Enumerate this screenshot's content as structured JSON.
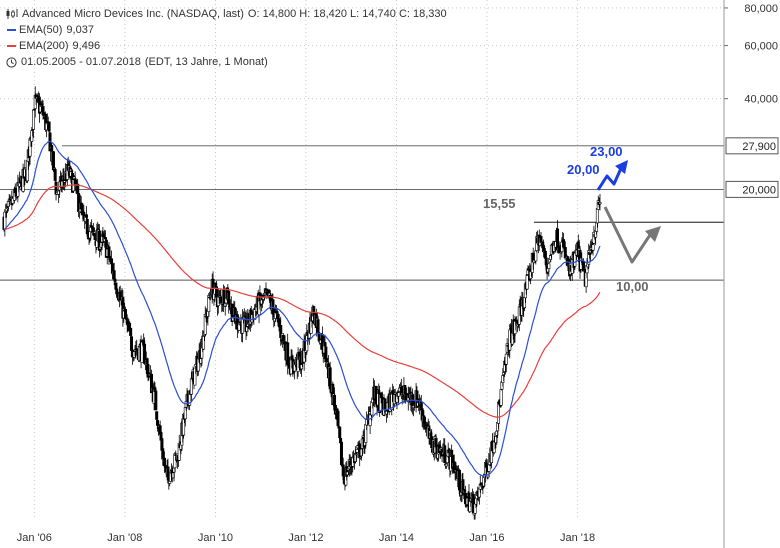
{
  "header": {
    "title": "Advanced Micro Devices Inc. (NASDAQ, last)",
    "ohlc": "O: 14,800  H: 18,420  L: 14,740  C: 18,330",
    "ema50_label": "EMA(50)",
    "ema50_value": "9,037",
    "ema200_label": "EMA(200)",
    "ema200_value": "9,496",
    "range_label": "01.05.2005 - 01.07.2018",
    "range_detail": "(EDT, 13 Jahre, 1 Monat)",
    "icons": {
      "chart": "candlestick-icon",
      "clock": "clock-icon"
    }
  },
  "colors": {
    "up": "#ffffff",
    "down": "#000000",
    "ema50": "#2a4fd6",
    "ema200": "#e8403a",
    "annotation_blue": "#1a3ee0",
    "annotation_gray": "#666666",
    "level_line": "#555555"
  },
  "chart_data": {
    "type": "candlestick",
    "title": "Advanced Micro Devices Inc. (NASDAQ, last)",
    "y_scale": "log",
    "ylim": [
      1.6,
      85
    ],
    "xlim": [
      "2005-05-01",
      "2018-07-01"
    ],
    "x_ticks": [
      "Jan '06",
      "Jan '08",
      "Jan '10",
      "Jan '12",
      "Jan '14",
      "Jan '16",
      "Jan '18"
    ],
    "y_ticks": [
      "80,000",
      "60,000",
      "40,000"
    ],
    "tick_values": [
      80,
      60,
      40
    ],
    "level_lines": [
      {
        "value": 27.9,
        "label": "27,900",
        "boxed": true
      },
      {
        "value": 20.0,
        "label": "20,000",
        "boxed": true
      },
      {
        "value": 15.55,
        "label": "",
        "boxed": false
      },
      {
        "value": 10.0,
        "label": "",
        "boxed": false
      }
    ],
    "annotations": [
      {
        "text": "15,55",
        "color": "gray"
      },
      {
        "text": "20,00",
        "color": "blue"
      },
      {
        "text": "23,00",
        "color": "blue"
      },
      {
        "text": "10,00",
        "color": "gray"
      }
    ],
    "ema50_latest": 9.037,
    "ema200_latest": 9.496,
    "price_anchors": [
      [
        "2005-05",
        16.0
      ],
      [
        "2005-08",
        19.0
      ],
      [
        "2005-11",
        23.0
      ],
      [
        "2006-01",
        39.0
      ],
      [
        "2006-03",
        37.0
      ],
      [
        "2006-05",
        30.0
      ],
      [
        "2006-07",
        19.5
      ],
      [
        "2006-10",
        23.0
      ],
      [
        "2006-12",
        20.0
      ],
      [
        "2007-02",
        15.5
      ],
      [
        "2007-05",
        14.0
      ],
      [
        "2007-08",
        13.0
      ],
      [
        "2007-11",
        9.5
      ],
      [
        "2008-01",
        7.5
      ],
      [
        "2008-03",
        6.0
      ],
      [
        "2008-06",
        5.8
      ],
      [
        "2008-09",
        4.0
      ],
      [
        "2008-12",
        2.2
      ],
      [
        "2009-03",
        2.6
      ],
      [
        "2009-06",
        4.2
      ],
      [
        "2009-09",
        5.8
      ],
      [
        "2009-12",
        9.5
      ],
      [
        "2010-02",
        8.5
      ],
      [
        "2010-04",
        9.2
      ],
      [
        "2010-06",
        7.5
      ],
      [
        "2010-09",
        7.0
      ],
      [
        "2010-12",
        8.2
      ],
      [
        "2011-03",
        8.8
      ],
      [
        "2011-06",
        7.0
      ],
      [
        "2011-09",
        5.2
      ],
      [
        "2011-12",
        5.4
      ],
      [
        "2012-03",
        8.0
      ],
      [
        "2012-06",
        5.8
      ],
      [
        "2012-09",
        3.6
      ],
      [
        "2012-11",
        2.2
      ],
      [
        "2013-01",
        2.5
      ],
      [
        "2013-04",
        2.8
      ],
      [
        "2013-07",
        4.2
      ],
      [
        "2013-10",
        3.7
      ],
      [
        "2014-01",
        4.3
      ],
      [
        "2014-04",
        4.1
      ],
      [
        "2014-07",
        4.0
      ],
      [
        "2014-10",
        2.9
      ],
      [
        "2015-01",
        2.7
      ],
      [
        "2015-04",
        2.5
      ],
      [
        "2015-07",
        1.9
      ],
      [
        "2015-10",
        1.8
      ],
      [
        "2016-01",
        2.4
      ],
      [
        "2016-03",
        3.0
      ],
      [
        "2016-05",
        4.4
      ],
      [
        "2016-07",
        6.5
      ],
      [
        "2016-09",
        7.2
      ],
      [
        "2016-11",
        9.0
      ],
      [
        "2017-01",
        11.5
      ],
      [
        "2017-03",
        14.0
      ],
      [
        "2017-05",
        11.0
      ],
      [
        "2017-07",
        14.0
      ],
      [
        "2017-09",
        13.0
      ],
      [
        "2017-11",
        10.5
      ],
      [
        "2018-01",
        12.5
      ],
      [
        "2018-03",
        10.0
      ],
      [
        "2018-05",
        13.5
      ],
      [
        "2018-07",
        18.33
      ]
    ]
  }
}
